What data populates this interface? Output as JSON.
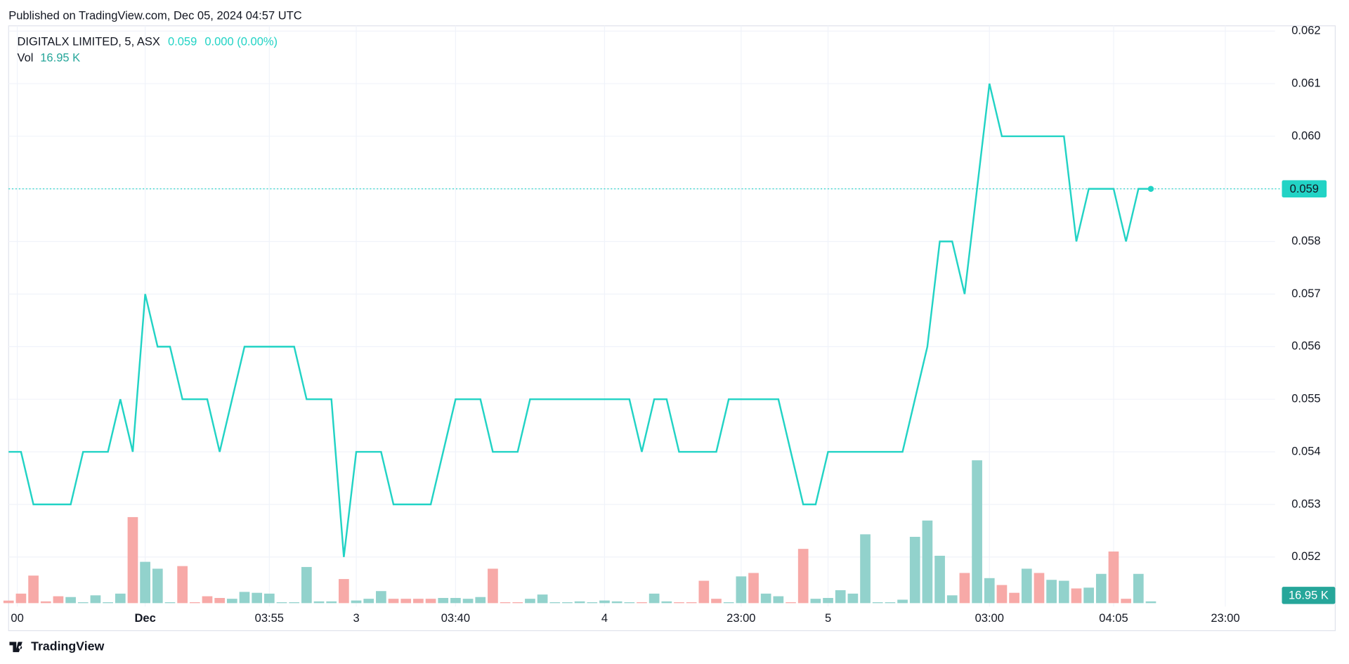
{
  "header": "Published on TradingView.com, Dec 05, 2024 04:57 UTC",
  "footer": "TradingView",
  "chart_data": {
    "type": "line",
    "title": "DIGITALX LIMITED, 5, ASX",
    "change": "0.000 (0.00%)",
    "series": [
      {
        "name": "DIGITALX LIMITED",
        "color": "#22d3c5",
        "values": [
          0.054,
          0.054,
          0.053,
          0.053,
          0.053,
          0.053,
          0.054,
          0.054,
          0.054,
          0.055,
          0.054,
          0.057,
          0.056,
          0.056,
          0.055,
          0.055,
          0.055,
          0.054,
          0.055,
          0.056,
          0.056,
          0.056,
          0.056,
          0.056,
          0.055,
          0.055,
          0.055,
          0.052,
          0.054,
          0.054,
          0.054,
          0.053,
          0.053,
          0.053,
          0.053,
          0.054,
          0.055,
          0.055,
          0.055,
          0.054,
          0.054,
          0.054,
          0.055,
          0.055,
          0.055,
          0.055,
          0.055,
          0.055,
          0.055,
          0.055,
          0.055,
          0.054,
          0.055,
          0.055,
          0.054,
          0.054,
          0.054,
          0.054,
          0.055,
          0.055,
          0.055,
          0.055,
          0.055,
          0.054,
          0.053,
          0.053,
          0.054,
          0.054,
          0.054,
          0.054,
          0.054,
          0.054,
          0.054,
          0.055,
          0.056,
          0.058,
          0.058,
          0.057,
          0.059,
          0.061,
          0.06,
          0.06,
          0.06,
          0.06,
          0.06,
          0.06,
          0.058,
          0.059,
          0.059,
          0.059,
          0.058,
          0.059,
          0.059
        ]
      }
    ],
    "volume": {
      "name": "Vol",
      "label_color": "#26a69a",
      "values": [
        25,
        94,
        272,
        17,
        68,
        60,
        9,
        77,
        9,
        94,
        850,
        408,
        340,
        9,
        366,
        9,
        68,
        51,
        43,
        111,
        102,
        94,
        9,
        9,
        357,
        17,
        17,
        238,
        26,
        43,
        119,
        43,
        43,
        43,
        43,
        51,
        51,
        43,
        60,
        340,
        9,
        9,
        43,
        85,
        9,
        9,
        17,
        9,
        26,
        17,
        9,
        9,
        94,
        17,
        9,
        9,
        221,
        43,
        9,
        264,
        298,
        94,
        68,
        9,
        536,
        43,
        51,
        128,
        94,
        680,
        9,
        9,
        34,
        655,
        816,
        468,
        77,
        298,
        1411,
        247,
        179,
        102,
        340,
        298,
        230,
        221,
        145,
        153,
        289,
        510,
        43,
        289,
        16.95
      ],
      "value_labels": [
        null,
        null,
        null,
        null,
        null,
        null,
        null,
        null,
        null,
        null,
        null,
        null,
        null,
        null,
        null,
        null,
        null,
        null,
        null,
        null,
        null,
        null,
        null,
        null,
        null,
        null,
        null,
        null,
        null,
        null,
        null,
        null,
        null,
        null,
        null,
        null,
        null,
        null,
        null,
        null,
        null,
        null,
        null,
        null,
        null,
        null,
        null,
        null,
        null,
        null,
        null,
        null,
        null,
        null,
        null,
        null,
        null,
        null,
        null,
        null,
        null,
        null,
        null,
        null,
        null,
        null,
        null,
        null,
        null,
        null,
        null,
        null,
        null,
        null,
        null,
        null,
        null,
        null,
        null,
        null,
        null,
        null,
        null,
        null,
        null,
        null,
        null,
        null,
        null,
        null,
        null,
        null,
        "16.95 K"
      ],
      "colors": [
        "#f7a9a7",
        "#f7a9a7",
        "#f7a9a7",
        "#f7a9a7",
        "#f7a9a7",
        "#92d2cc",
        "#92d2cc",
        "#92d2cc",
        "#92d2cc",
        "#92d2cc",
        "#f7a9a7",
        "#92d2cc",
        "#92d2cc",
        "#92d2cc",
        "#f7a9a7",
        "#f7a9a7",
        "#f7a9a7",
        "#f7a9a7",
        "#92d2cc",
        "#92d2cc",
        "#92d2cc",
        "#92d2cc",
        "#92d2cc",
        "#92d2cc",
        "#92d2cc",
        "#92d2cc",
        "#92d2cc",
        "#f7a9a7",
        "#92d2cc",
        "#92d2cc",
        "#92d2cc",
        "#f7a9a7",
        "#f7a9a7",
        "#f7a9a7",
        "#f7a9a7",
        "#92d2cc",
        "#92d2cc",
        "#92d2cc",
        "#92d2cc",
        "#f7a9a7",
        "#f7a9a7",
        "#f7a9a7",
        "#92d2cc",
        "#92d2cc",
        "#92d2cc",
        "#92d2cc",
        "#92d2cc",
        "#92d2cc",
        "#92d2cc",
        "#92d2cc",
        "#92d2cc",
        "#f7a9a7",
        "#92d2cc",
        "#92d2cc",
        "#f7a9a7",
        "#f7a9a7",
        "#f7a9a7",
        "#f7a9a7",
        "#92d2cc",
        "#92d2cc",
        "#f7a9a7",
        "#92d2cc",
        "#92d2cc",
        "#f7a9a7",
        "#f7a9a7",
        "#92d2cc",
        "#92d2cc",
        "#92d2cc",
        "#92d2cc",
        "#92d2cc",
        "#92d2cc",
        "#92d2cc",
        "#92d2cc",
        "#92d2cc",
        "#92d2cc",
        "#92d2cc",
        "#92d2cc",
        "#f7a9a7",
        "#92d2cc",
        "#92d2cc",
        "#f7a9a7",
        "#f7a9a7",
        "#92d2cc",
        "#f7a9a7",
        "#92d2cc",
        "#92d2cc",
        "#f7a9a7",
        "#92d2cc",
        "#92d2cc",
        "#f7a9a7",
        "#f7a9a7",
        "#92d2cc",
        "#92d2cc"
      ]
    },
    "xlim": [
      0,
      102
    ],
    "xticks": [
      {
        "value": 0.7,
        "label": "00"
      },
      {
        "value": 11,
        "label": "Dec"
      },
      {
        "value": 21,
        "label": "03:55"
      },
      {
        "value": 28,
        "label": "3"
      },
      {
        "value": 36,
        "label": "03:40"
      },
      {
        "value": 48,
        "label": "4"
      },
      {
        "value": 59,
        "label": "23:00"
      },
      {
        "value": 66,
        "label": "5"
      },
      {
        "value": 79,
        "label": "03:00"
      },
      {
        "value": 89,
        "label": "04:05"
      },
      {
        "value": 98,
        "label": "23:00"
      }
    ],
    "ylim": [
      0.0506,
      0.0621
    ],
    "yticks": [
      {
        "value": 0.052,
        "label": "0.052"
      },
      {
        "value": 0.053,
        "label": "0.053"
      },
      {
        "value": 0.054,
        "label": "0.054"
      },
      {
        "value": 0.055,
        "label": "0.055"
      },
      {
        "value": 0.056,
        "label": "0.056"
      },
      {
        "value": 0.057,
        "label": "0.057"
      },
      {
        "value": 0.058,
        "label": "0.058"
      },
      {
        "value": 0.059,
        "label": "0.059"
      },
      {
        "value": 0.06,
        "label": "0.060"
      },
      {
        "value": 0.061,
        "label": "0.061"
      },
      {
        "value": 0.062,
        "label": "0.062"
      }
    ],
    "grid": true
  }
}
